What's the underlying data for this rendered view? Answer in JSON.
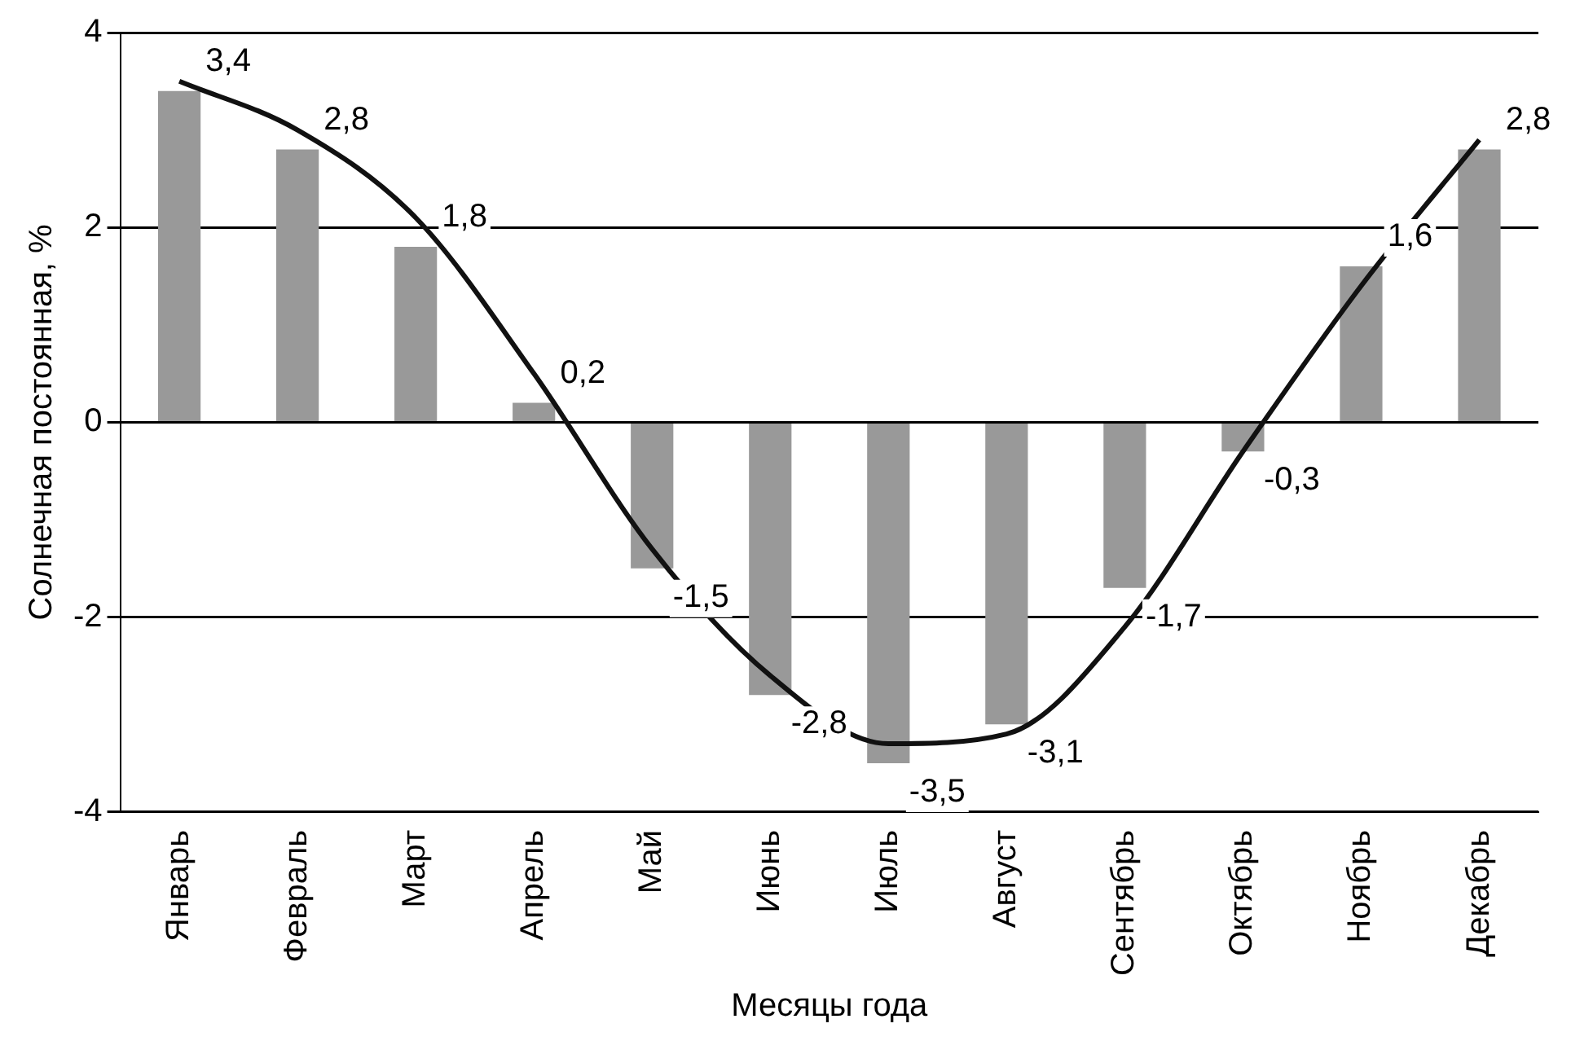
{
  "chart_data": {
    "type": "bar",
    "xlabel": "Месяцы года",
    "ylabel": "Солнечная постоянная, %",
    "categories": [
      "Январь",
      "Февраль",
      "Март",
      "Апрель",
      "Май",
      "Июнь",
      "Июль",
      "Август",
      "Сентябрь",
      "Октябрь",
      "Ноябрь",
      "Декабрь"
    ],
    "series": [
      {
        "color": "#999999",
        "values": [
          3.4,
          2.8,
          1.8,
          0.2,
          -1.5,
          -2.8,
          -3.5,
          -3.1,
          -1.7,
          -0.3,
          1.6,
          2.8
        ],
        "value_labels": [
          "3,4",
          "2,8",
          "1,8",
          "0,2",
          "-1,5",
          "-2,8",
          "-3,5",
          "-3,1",
          "-1,7",
          "-0,3",
          "1,6",
          "2,8"
        ]
      },
      {
        "type": "line",
        "color": "#111111",
        "values": [
          3.5,
          3.0,
          2.1,
          0.5,
          -1.3,
          -2.6,
          -3.3,
          -3.2,
          -2.1,
          -0.3,
          1.4,
          2.9
        ]
      }
    ],
    "ylim": [
      -4,
      4
    ],
    "yticks": [
      -4,
      -2,
      0,
      2,
      4
    ],
    "grid": "y",
    "legend": false,
    "marker": "none"
  }
}
